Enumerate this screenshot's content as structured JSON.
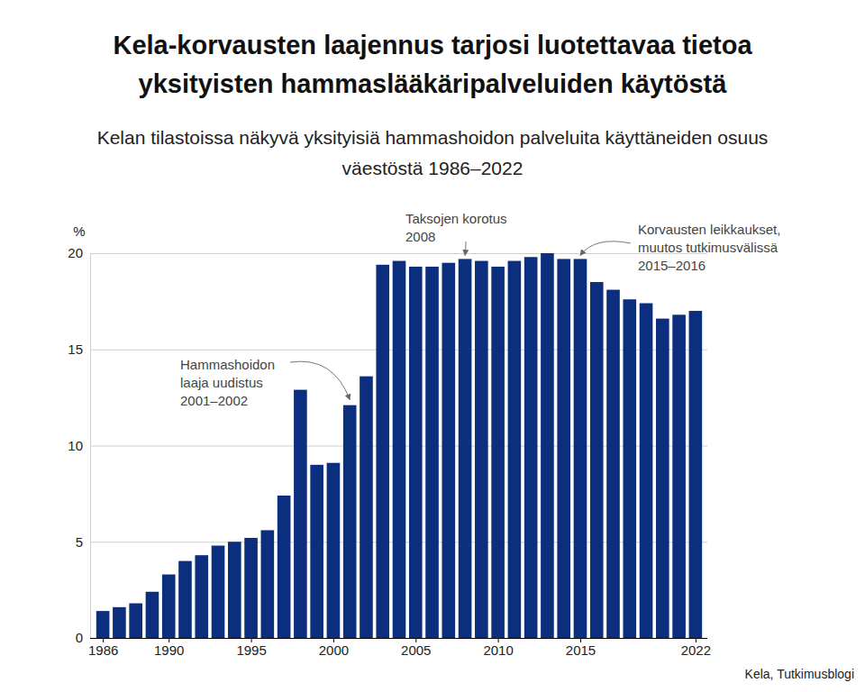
{
  "chart_data": {
    "type": "bar",
    "title": [
      "Kela-korvausten laajennus tarjosi luotettavaa tietoa",
      "yksityisten hammaslääkäripalveluiden käytöstä"
    ],
    "subtitle": [
      "Kelan tilastoissa näkyvä yksityisiä hammashoidon palveluita käyttäneiden osuus",
      "väestöstä 1986–2022"
    ],
    "y_label": "%",
    "source": "Kela, Tutkimusblogi",
    "x": [
      1986,
      1987,
      1988,
      1989,
      1990,
      1991,
      1992,
      1993,
      1994,
      1995,
      1996,
      1997,
      1998,
      1999,
      2000,
      2001,
      2002,
      2003,
      2004,
      2005,
      2006,
      2007,
      2008,
      2009,
      2010,
      2011,
      2012,
      2013,
      2014,
      2015,
      2016,
      2017,
      2018,
      2019,
      2020,
      2021,
      2022
    ],
    "values": [
      1.4,
      1.6,
      1.8,
      2.4,
      3.3,
      4.0,
      4.3,
      4.8,
      5.0,
      5.2,
      5.6,
      7.4,
      12.9,
      9.0,
      9.1,
      12.1,
      13.6,
      19.4,
      19.6,
      19.3,
      19.3,
      19.5,
      19.7,
      19.6,
      19.3,
      19.6,
      19.8,
      20.0,
      19.7,
      19.7,
      18.5,
      18.1,
      17.6,
      17.4,
      16.6,
      16.8,
      17.0
    ],
    "color": "#0b2f7e",
    "xlim": [
      1985.5,
      2022.5
    ],
    "xticks": [
      1986,
      1990,
      1995,
      2000,
      2005,
      2010,
      2015,
      2022
    ],
    "ylim": [
      0,
      20
    ],
    "yticks": [
      0,
      5,
      10,
      15,
      20
    ],
    "grid": true,
    "annotations": [
      {
        "lines": [
          "Hammashoidon",
          "laaja uudistus",
          "2001–2002"
        ],
        "x": 2001,
        "y": 12.1
      },
      {
        "lines": [
          "Taksojen korotus",
          "2008"
        ],
        "x": 2008,
        "y": 19.7
      },
      {
        "lines": [
          "Korvausten leikkaukset,",
          "muutos tutkimusvälissä",
          "2015–2016"
        ],
        "x": 2015,
        "y": 19.7
      }
    ]
  }
}
